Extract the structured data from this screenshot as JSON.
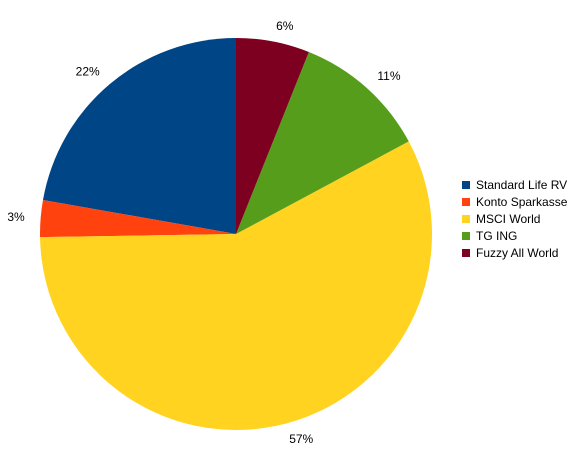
{
  "chart_data": {
    "type": "pie",
    "categories": [
      "Standard Life RV",
      "Konto Sparkasse",
      "MSCI World",
      "TG ING",
      "Fuzzy All World"
    ],
    "values": [
      22,
      3,
      57,
      11,
      6
    ],
    "labels": [
      "22%",
      "3%",
      "57%",
      "11%",
      "6%"
    ],
    "colors": [
      "#004586",
      "#ff420e",
      "#ffd320",
      "#579d1c",
      "#7e0021"
    ],
    "legend": "right",
    "start": "top",
    "direction": "counterclockwise"
  }
}
